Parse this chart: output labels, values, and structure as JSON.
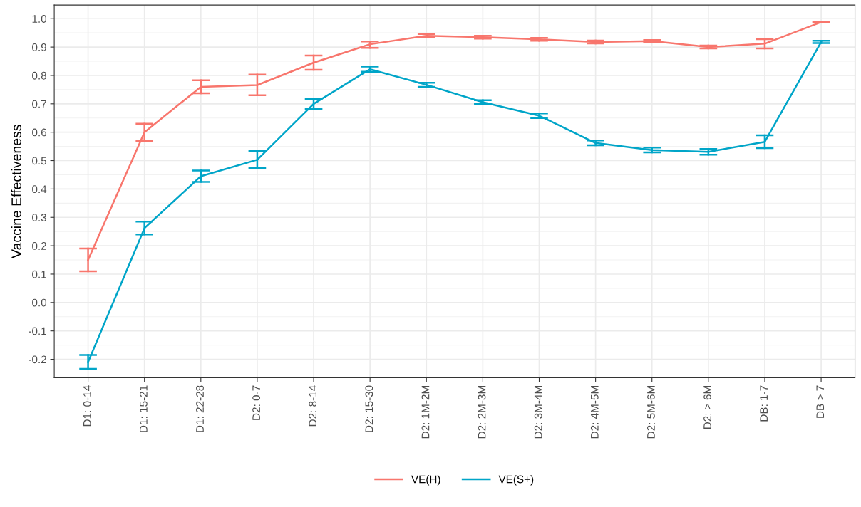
{
  "chart_data": {
    "type": "line",
    "ylabel": "Vaccine Effectiveness",
    "categories": [
      "D1: 0-14",
      "D1: 15-21",
      "D1: 22-28",
      "D2: 0-7",
      "D2: 8-14",
      "D2: 15-30",
      "D2: 1M-2M",
      "D2: 2M-3M",
      "D2: 3M-4M",
      "D2: 4M-5M",
      "D2: 5M-6M",
      "D2: > 6M",
      "DB: 1-7",
      "DB > 7"
    ],
    "series": [
      {
        "name": "VE(H)",
        "color": "#f8766d",
        "values": [
          0.15,
          0.6,
          0.76,
          0.766,
          0.845,
          0.91,
          0.94,
          0.935,
          0.927,
          0.918,
          0.921,
          0.9,
          0.912,
          0.988
        ],
        "errors": [
          [
            0.11,
            0.19
          ],
          [
            0.57,
            0.63
          ],
          [
            0.737,
            0.783
          ],
          [
            0.73,
            0.803
          ],
          [
            0.82,
            0.87
          ],
          [
            0.897,
            0.92
          ],
          [
            0.936,
            0.946
          ],
          [
            0.93,
            0.94
          ],
          [
            0.922,
            0.932
          ],
          [
            0.913,
            0.923
          ],
          [
            0.917,
            0.925
          ],
          [
            0.895,
            0.905
          ],
          [
            0.895,
            0.928
          ],
          [
            0.986,
            0.99
          ]
        ]
      },
      {
        "name": "VE(S+)",
        "color": "#00a5c8",
        "values": [
          -0.21,
          0.262,
          0.445,
          0.503,
          0.7,
          0.822,
          0.767,
          0.706,
          0.658,
          0.562,
          0.537,
          0.531,
          0.566,
          0.918
        ],
        "errors": [
          [
            -0.234,
            -0.185
          ],
          [
            0.24,
            0.285
          ],
          [
            0.425,
            0.465
          ],
          [
            0.473,
            0.534
          ],
          [
            0.682,
            0.717
          ],
          [
            0.813,
            0.831
          ],
          [
            0.76,
            0.774
          ],
          [
            0.7,
            0.713
          ],
          [
            0.65,
            0.666
          ],
          [
            0.554,
            0.571
          ],
          [
            0.529,
            0.546
          ],
          [
            0.521,
            0.541
          ],
          [
            0.544,
            0.589
          ],
          [
            0.914,
            0.922
          ]
        ]
      }
    ],
    "ylim": [
      -0.265,
      1.048
    ],
    "yticks": [
      {
        "value": -0.2,
        "label": "-0.2"
      },
      {
        "value": -0.1,
        "label": "-0.1"
      },
      {
        "value": 0.0,
        "label": "0.0"
      },
      0.1,
      0.2,
      0.3,
      0.4,
      0.5,
      0.6,
      0.7,
      0.8,
      0.9,
      {
        "value": 1.0,
        "label": "1.0"
      }
    ],
    "grid": true,
    "legend": "bottom",
    "marker": "none",
    "line_style": "solid"
  }
}
